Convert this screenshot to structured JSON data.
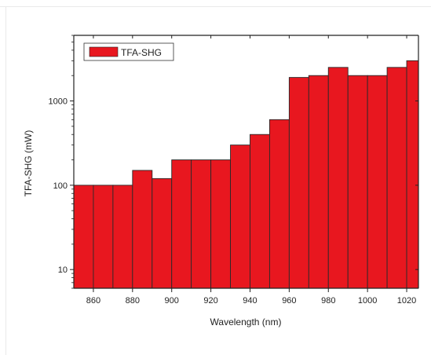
{
  "chart_data": {
    "type": "bar",
    "title": "",
    "xlabel": "Wavelength (nm)",
    "ylabel": "TFA-SHG (mW)",
    "y_scale": "log",
    "ylim": [
      6,
      6000
    ],
    "xlim": [
      850,
      1026
    ],
    "grid": false,
    "legend_position": "top-left",
    "bar_width_nm": 10,
    "x_ticks": [
      860,
      880,
      900,
      920,
      940,
      960,
      980,
      1000,
      1020
    ],
    "y_ticks": [
      10,
      100,
      1000
    ],
    "y_tick_labels": [
      "10",
      "100",
      "1000"
    ],
    "series": [
      {
        "name": "TFA-SHG",
        "color": "#e8171f",
        "x": [
          850,
          860,
          870,
          880,
          890,
          900,
          910,
          920,
          930,
          940,
          950,
          960,
          970,
          980,
          990,
          1000,
          1010,
          1020
        ],
        "values": [
          100,
          100,
          100,
          150,
          120,
          200,
          200,
          200,
          300,
          400,
          600,
          1900,
          2000,
          2500,
          2000,
          2000,
          2500,
          3000
        ]
      }
    ]
  }
}
